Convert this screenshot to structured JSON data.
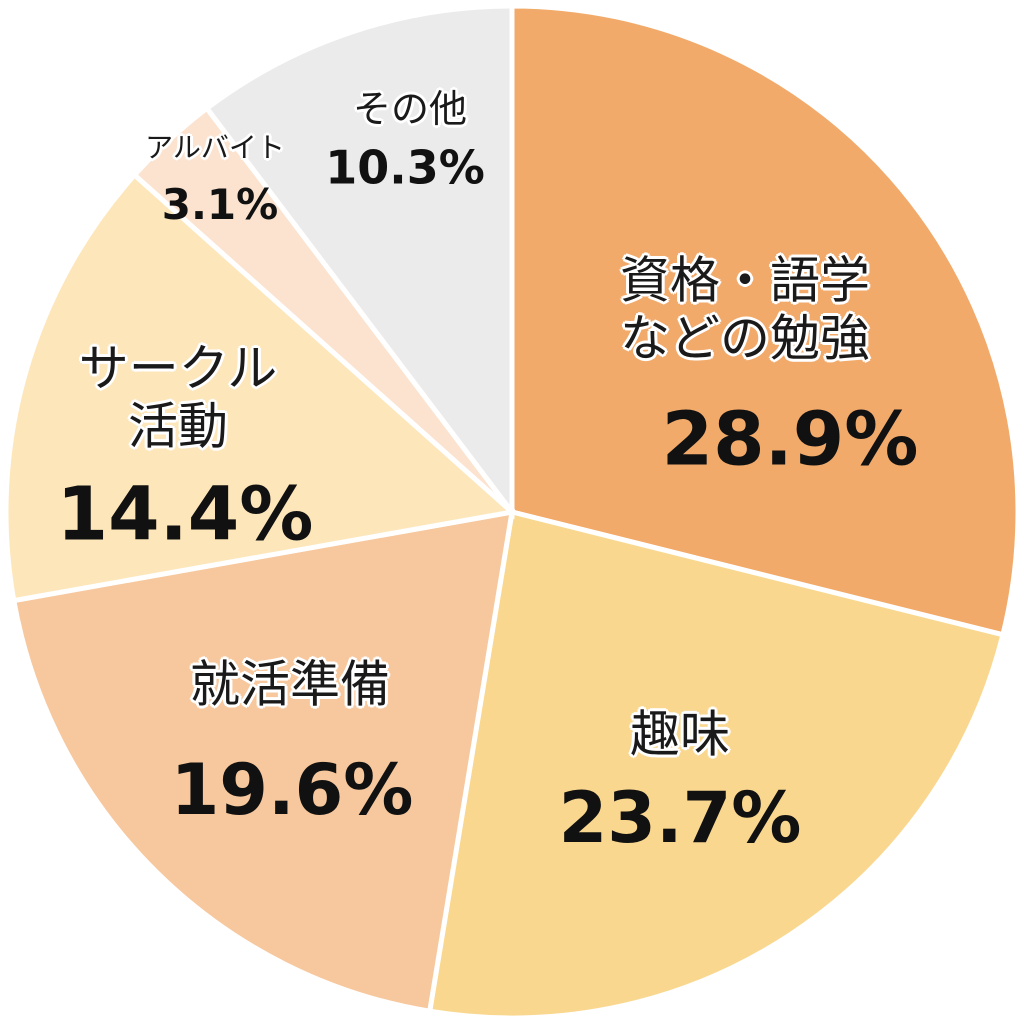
{
  "chart_data": {
    "type": "pie",
    "categories": [
      "資格・語学\nなどの勉強",
      "趣味",
      "就活準備",
      "サークル\n活動",
      "アルバイト",
      "その他"
    ],
    "values": [
      28.9,
      23.7,
      19.6,
      14.4,
      3.1,
      10.3
    ],
    "value_labels": [
      "28.9%",
      "23.7%",
      "19.6%",
      "14.4%",
      "3.1%",
      "10.3%"
    ],
    "colors": [
      "#f2aa6b",
      "#fad78f",
      "#f7c89d",
      "#fde6ba",
      "#fbe3d0",
      "#ebebeb"
    ]
  }
}
